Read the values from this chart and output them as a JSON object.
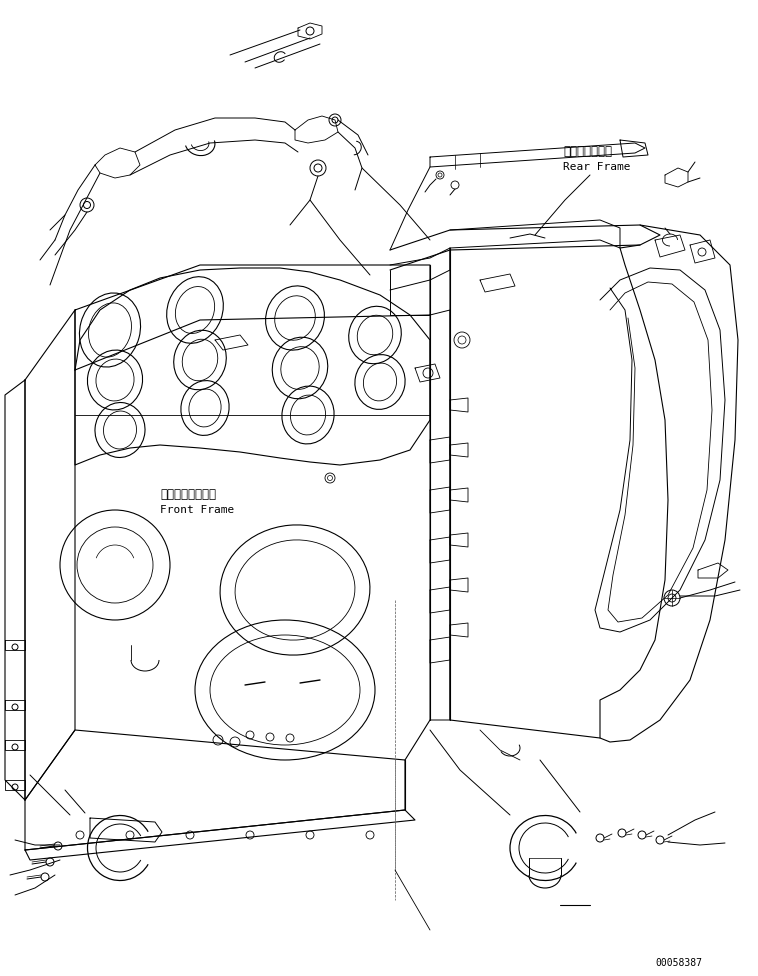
{
  "background_color": "#ffffff",
  "line_color": "#000000",
  "text_color": "#000000",
  "label_rear_jp": "リヤーフレーム",
  "label_rear_en": "Rear Frame",
  "label_front_jp": "フロントフレーム",
  "label_front_en": "Front Frame",
  "serial_number": "00058387",
  "figsize": [
    7.58,
    9.76
  ],
  "dpi": 100
}
